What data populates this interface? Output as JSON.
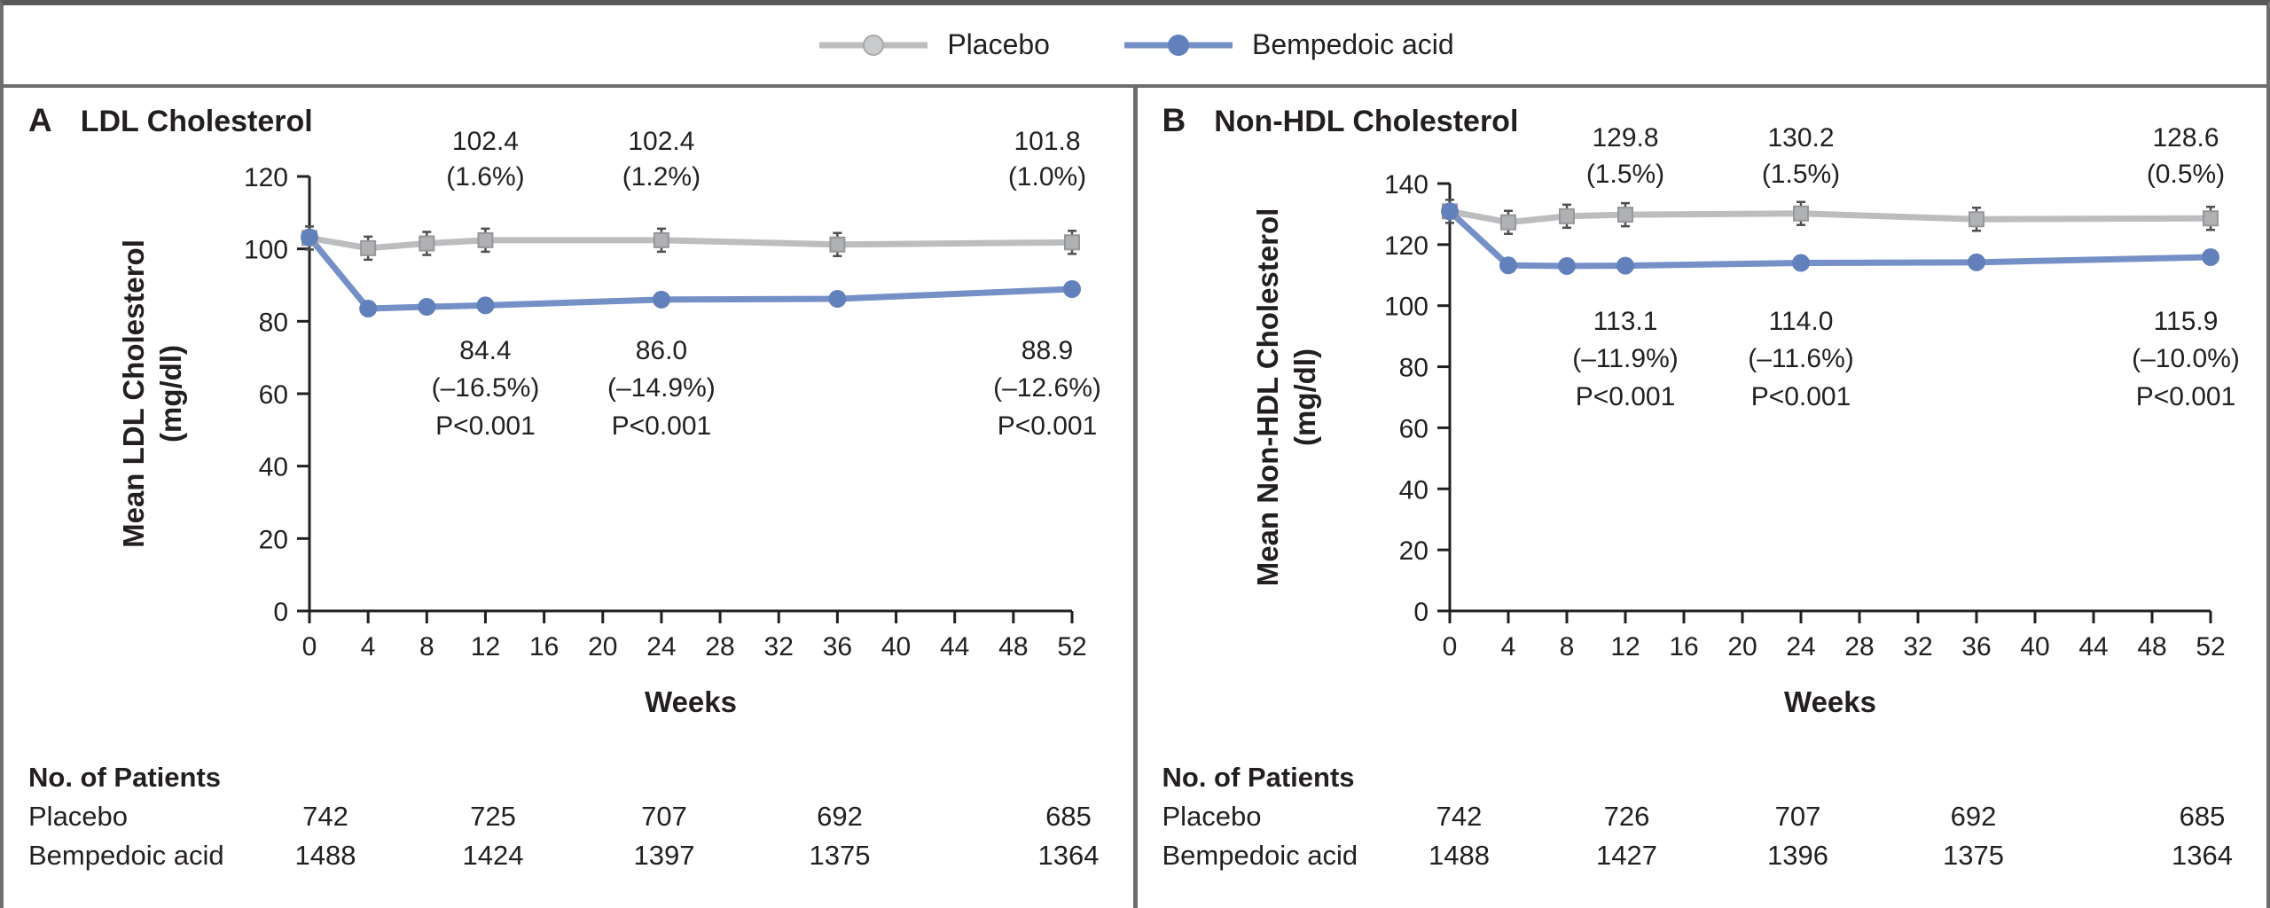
{
  "colors": {
    "ink": "#231f20",
    "frame_gray": "#6d6e70",
    "top_bar": "#58595b",
    "placebo_line": "#bcbdbf",
    "placebo_marker_fill": "#b0b1b3",
    "placebo_marker_stroke": "#96979a",
    "placebo_legend_fill": "#c9cacc",
    "bempedoic_line": "#7590c7",
    "bempedoic_marker_fill": "#6280bb",
    "error_bar": "#4d4e50"
  },
  "legend": {
    "items": [
      {
        "label": "Placebo",
        "line_color": "#bcbdbf",
        "marker_fill": "#c9cacc",
        "marker_stroke": "#a7a8aa"
      },
      {
        "label": "Bempedoic acid",
        "line_color": "#7590c7",
        "marker_fill": "#6280bb",
        "marker_stroke": "#6280bb"
      }
    ]
  },
  "panels": [
    {
      "letter": "A",
      "title": "LDL Cholesterol",
      "patients": {
        "header": "No. of Patients",
        "rows": [
          {
            "label": "Placebo",
            "values": [
              "742",
              "725",
              "707",
              "692",
              "685"
            ]
          },
          {
            "label": "Bempedoic acid",
            "values": [
              "1488",
              "1424",
              "1397",
              "1375",
              "1364"
            ]
          }
        ]
      }
    },
    {
      "letter": "B",
      "title": "Non-HDL Cholesterol",
      "patients": {
        "header": "No. of Patients",
        "rows": [
          {
            "label": "Placebo",
            "values": [
              "742",
              "726",
              "707",
              "692",
              "685"
            ]
          },
          {
            "label": "Bempedoic acid",
            "values": [
              "1488",
              "1427",
              "1396",
              "1375",
              "1364"
            ]
          }
        ]
      }
    }
  ],
  "chart_data": [
    {
      "type": "line",
      "title": "LDL Cholesterol",
      "xlabel": "Weeks",
      "ylabel": "Mean LDL Cholesterol\n(mg/dl)",
      "xlim": [
        0,
        52
      ],
      "ylim": [
        0,
        120
      ],
      "xticks": [
        0,
        4,
        8,
        12,
        16,
        20,
        24,
        28,
        32,
        36,
        40,
        44,
        48,
        52
      ],
      "yticks": [
        0,
        20,
        40,
        60,
        80,
        100,
        120
      ],
      "grid": false,
      "legend_position": "top-center",
      "series": [
        {
          "name": "Placebo",
          "marker": "square",
          "color": "#bcbdbf",
          "marker_fill": "#b0b1b3",
          "marker_stroke": "#96979a",
          "x": [
            0,
            4,
            8,
            12,
            24,
            36,
            52
          ],
          "y": [
            103.0,
            100.2,
            101.5,
            102.4,
            102.4,
            101.2,
            101.8
          ]
        },
        {
          "name": "Bempedoic acid",
          "marker": "circle",
          "color": "#7590c7",
          "marker_fill": "#6280bb",
          "marker_stroke": "#6280bb",
          "x": [
            0,
            4,
            8,
            12,
            24,
            36,
            52
          ],
          "y": [
            103.2,
            83.5,
            84.0,
            84.4,
            86.0,
            86.2,
            88.9
          ]
        }
      ],
      "annotations_above": [
        {
          "week": 12,
          "lines": [
            "102.4",
            "(1.6%)"
          ]
        },
        {
          "week": 24,
          "lines": [
            "102.4",
            "(1.2%)"
          ]
        },
        {
          "week": 52,
          "lines": [
            "101.8",
            "(1.0%)"
          ]
        }
      ],
      "annotations_below": [
        {
          "week": 12,
          "lines": [
            "84.4",
            "(–16.5%)",
            "P<0.001"
          ]
        },
        {
          "week": 24,
          "lines": [
            "86.0",
            "(–14.9%)",
            "P<0.001"
          ]
        },
        {
          "week": 52,
          "lines": [
            "88.9",
            "(–12.6%)",
            "P<0.001"
          ]
        }
      ]
    },
    {
      "type": "line",
      "title": "Non-HDL Cholesterol",
      "xlabel": "Weeks",
      "ylabel": "Mean Non-HDL Cholesterol\n(mg/dl)",
      "xlim": [
        0,
        52
      ],
      "ylim": [
        0,
        140
      ],
      "xticks": [
        0,
        4,
        8,
        12,
        16,
        20,
        24,
        28,
        32,
        36,
        40,
        44,
        48,
        52
      ],
      "yticks": [
        0,
        20,
        40,
        60,
        80,
        100,
        120,
        140
      ],
      "grid": false,
      "legend_position": "top-center",
      "series": [
        {
          "name": "Placebo",
          "marker": "square",
          "color": "#bcbdbf",
          "marker_fill": "#b0b1b3",
          "marker_stroke": "#96979a",
          "x": [
            0,
            4,
            8,
            12,
            24,
            36,
            52
          ],
          "y": [
            130.9,
            127.3,
            129.3,
            129.8,
            130.2,
            128.3,
            128.6
          ]
        },
        {
          "name": "Bempedoic acid",
          "marker": "circle",
          "color": "#7590c7",
          "marker_fill": "#6280bb",
          "marker_stroke": "#6280bb",
          "x": [
            0,
            4,
            8,
            12,
            24,
            36,
            52
          ],
          "y": [
            130.9,
            113.2,
            113.0,
            113.1,
            114.0,
            114.2,
            115.9
          ]
        }
      ],
      "annotations_above": [
        {
          "week": 12,
          "lines": [
            "129.8",
            "(1.5%)"
          ]
        },
        {
          "week": 24,
          "lines": [
            "130.2",
            "(1.5%)"
          ]
        },
        {
          "week": 52,
          "lines": [
            "128.6",
            "(0.5%)"
          ]
        }
      ],
      "annotations_below": [
        {
          "week": 12,
          "lines": [
            "113.1",
            "(–11.9%)",
            "P<0.001"
          ]
        },
        {
          "week": 24,
          "lines": [
            "114.0",
            "(–11.6%)",
            "P<0.001"
          ]
        },
        {
          "week": 52,
          "lines": [
            "115.9",
            "(–10.0%)",
            "P<0.001"
          ]
        }
      ]
    }
  ]
}
